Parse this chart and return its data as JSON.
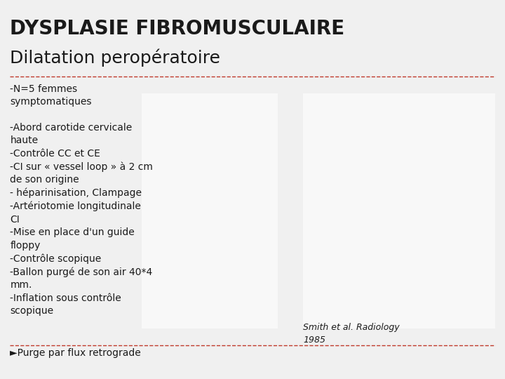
{
  "title_line1": "DYSPLASIE FIBROMUSCULAIRE",
  "title_line2": "Dilatation peropératoire",
  "background_color": "#f0f0f0",
  "title_color": "#1a1a1a",
  "text_color": "#1a1a1a",
  "divider_color": "#c0392b",
  "bullet_color": "#c0392b",
  "body_text": "-N=5 femmes\nsymptomatiques\n\n-Abord carotide cervicale\nhaute\n-Contrôle CC et CE\n-CI sur « vessel loop » à 2 cm\nde son origine\n- héparinisation, Clampage\n-Artériotomie longitudinale\nCI\n-Mise en place d'un guide\nfloppy\n-Contrôle scopique\n-Ballon purgé de son air 40*4\nmm.\n-Inflation sous contrôle\nscopique",
  "footer_text": "►Purge par flux retrograde",
  "citation": "Smith et al. Radiology\n1985",
  "title_fontsize": 20,
  "subtitle_fontsize": 18,
  "body_fontsize": 10,
  "footer_fontsize": 10,
  "citation_fontsize": 9
}
